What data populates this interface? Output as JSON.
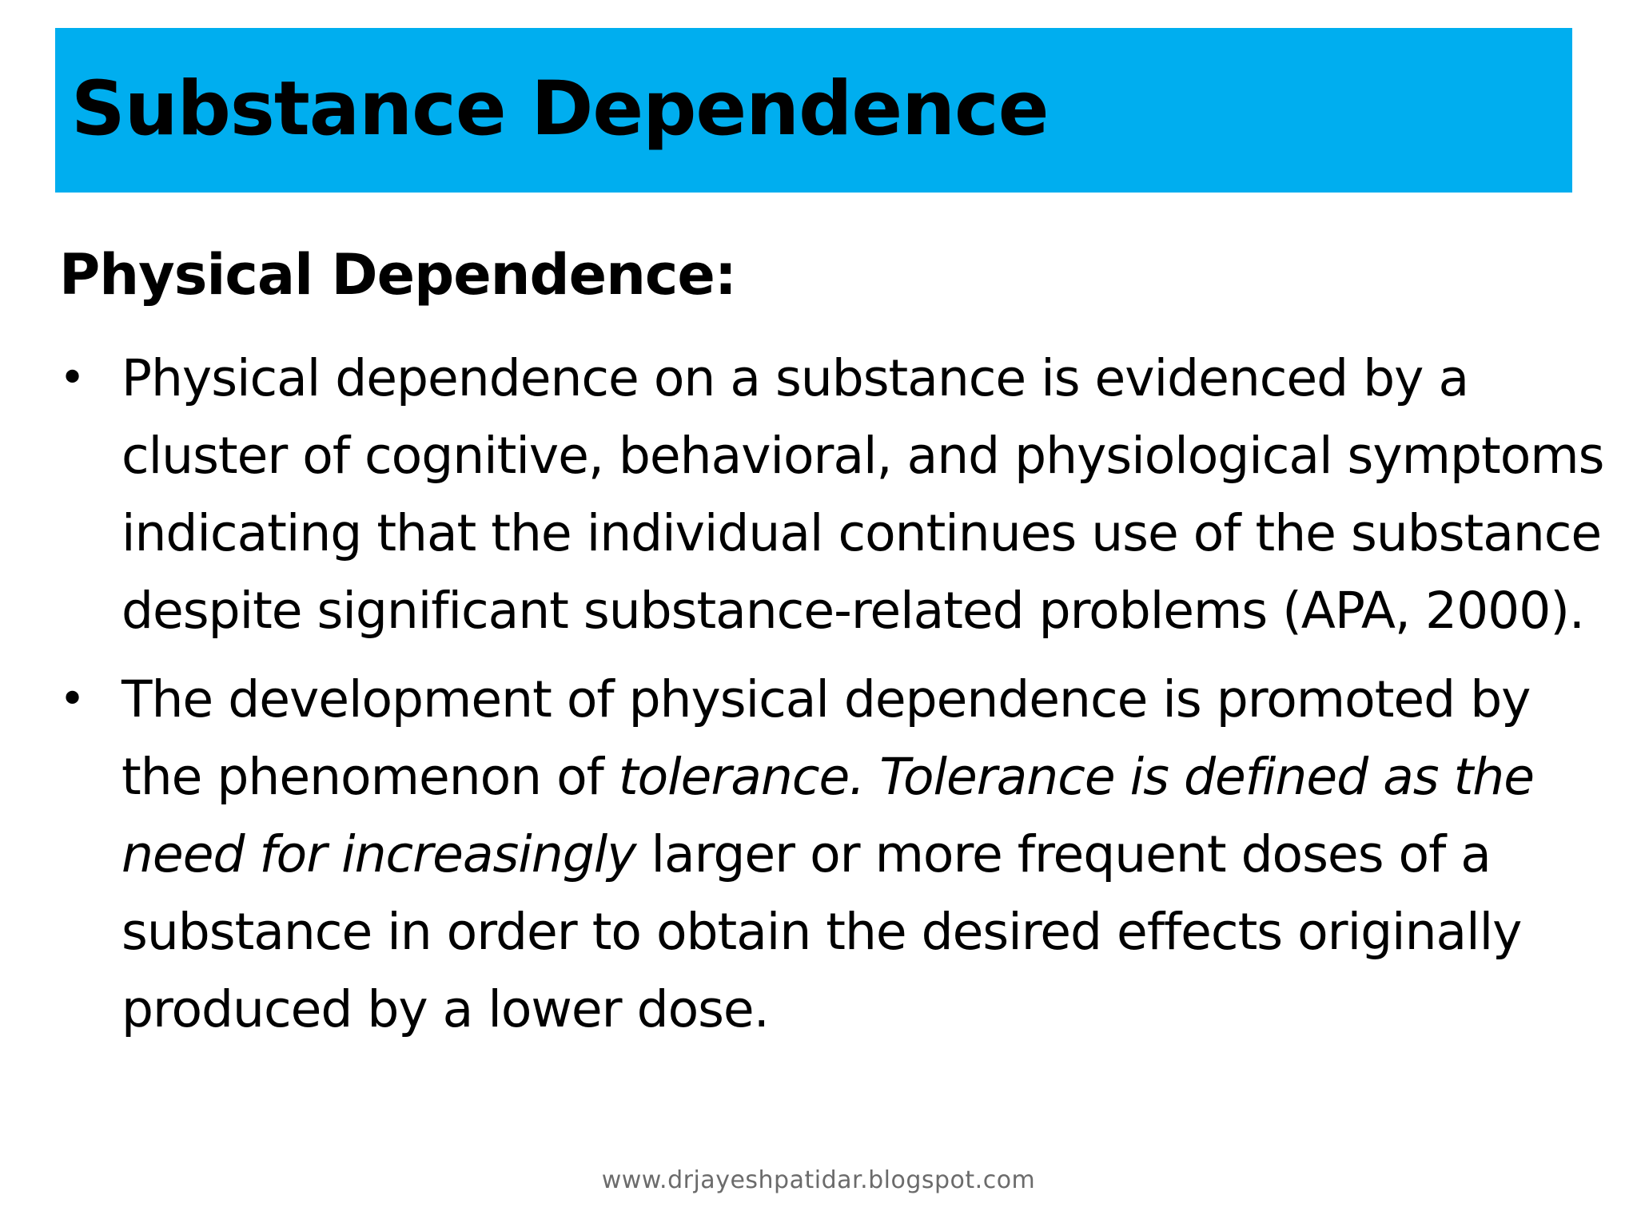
{
  "slide": {
    "background": "#ffffff",
    "title_bar_color": "#00aeef",
    "title": "Substance Dependence",
    "subheading": "Physical Dependence:",
    "bullet_icon": "bullet-dot-icon",
    "bullets": [
      {
        "text": "Physical dependence on a substance is evidenced by a cluster of cognitive, behavioral, and physiological symptoms indicating that the individual continues use of the substance despite significant substance-related problems (APA, 2000)."
      },
      {
        "part1": "The development of physical dependence is promoted by the phenomenon of ",
        "italic": "tolerance. Tolerance is defined as the need for increasingly",
        "part2": " larger or more frequent doses of a substance in order to obtain the desired effects originally produced by a lower dose."
      }
    ],
    "footer": "www.drjayeshpatidar.blogspot.com"
  }
}
